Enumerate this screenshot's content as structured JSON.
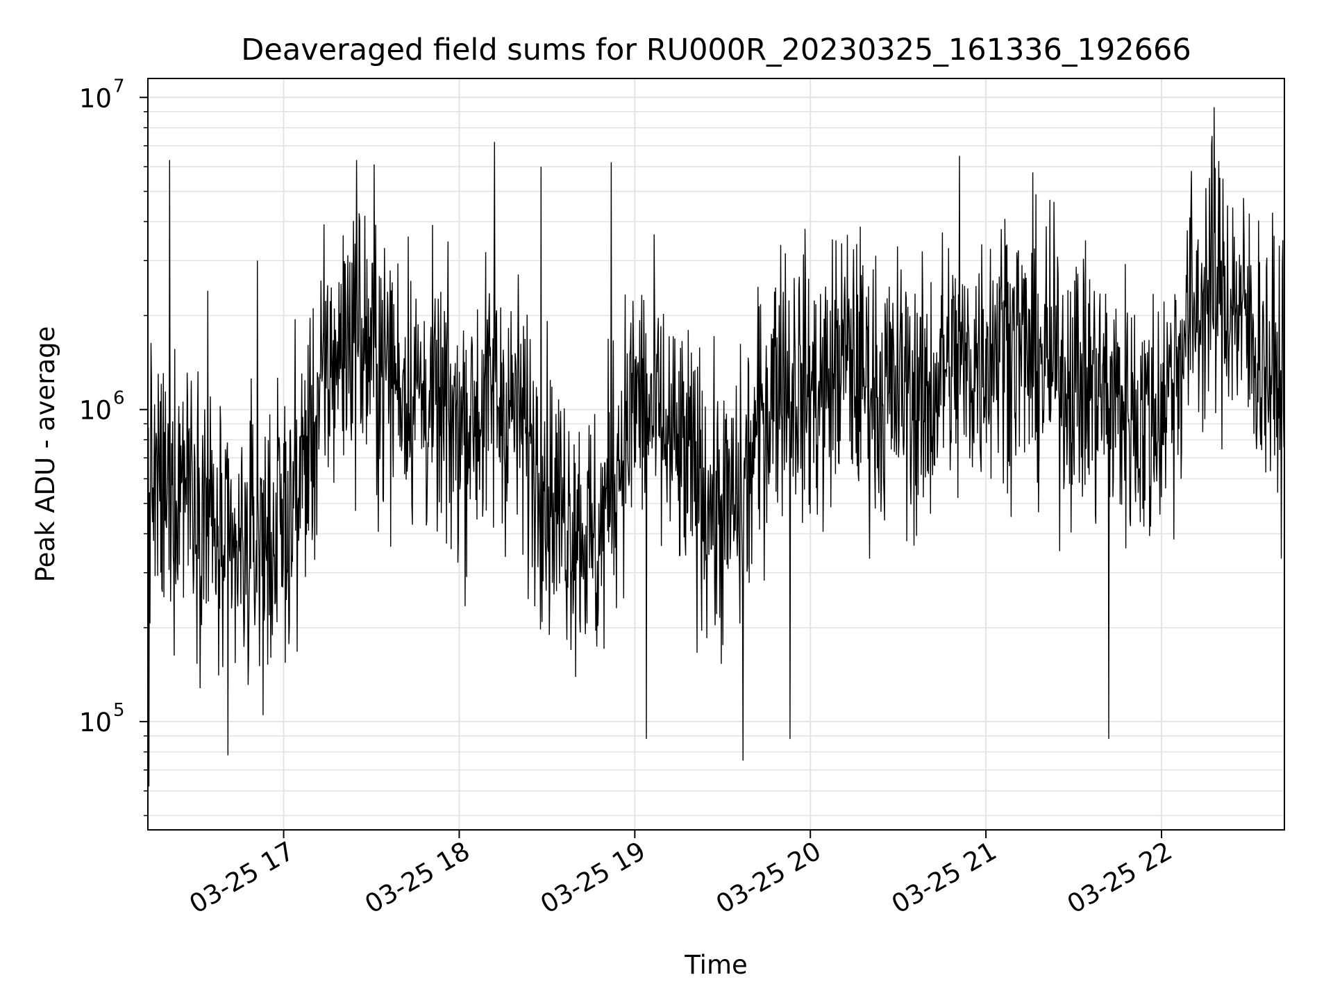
{
  "chart_data": {
    "type": "line",
    "title": "Deaveraged field sums for RU000R_20230325_161336_192666",
    "xlabel": "Time",
    "ylabel": "Peak ADU - average",
    "xscale": "time",
    "yscale": "log",
    "xlim": [
      "2023-03-25 16:13:36",
      "2023-03-25 22:42:00"
    ],
    "ylim": [
      45000,
      11500000
    ],
    "grid": true,
    "legend": "none",
    "line_color": "#000000",
    "x_ticks": [
      {
        "value": "2023-03-25 17:00",
        "label": "03-25 17"
      },
      {
        "value": "2023-03-25 18:00",
        "label": "03-25 18"
      },
      {
        "value": "2023-03-25 19:00",
        "label": "03-25 19"
      },
      {
        "value": "2023-03-25 20:00",
        "label": "03-25 20"
      },
      {
        "value": "2023-03-25 21:00",
        "label": "03-25 21"
      },
      {
        "value": "2023-03-25 22:00",
        "label": "03-25 22"
      }
    ],
    "y_ticks": [
      {
        "value": 100000,
        "base": "10",
        "exp": "5"
      },
      {
        "value": 1000000,
        "base": "10",
        "exp": "6"
      },
      {
        "value": 10000000,
        "base": "10",
        "exp": "7"
      }
    ],
    "series": [
      {
        "x": [
          "16:13",
          "16:20",
          "16:27",
          "16:34",
          "16:41",
          "16:48",
          "16:55",
          "17:02",
          "17:09",
          "17:16",
          "17:23",
          "17:30",
          "17:37",
          "17:44",
          "17:51",
          "17:58",
          "18:05",
          "18:12",
          "18:19",
          "18:26",
          "18:33",
          "18:40",
          "18:47",
          "18:54",
          "19:01",
          "19:08",
          "19:15",
          "19:22",
          "19:29",
          "19:36",
          "19:43",
          "19:50",
          "19:57",
          "20:04",
          "20:11",
          "20:18",
          "20:25",
          "20:32",
          "20:39",
          "20:46",
          "20:53",
          "21:00",
          "21:07",
          "21:14",
          "21:21",
          "21:28",
          "21:35",
          "21:42",
          "21:49",
          "21:56",
          "22:03",
          "22:10",
          "22:17",
          "22:24",
          "22:31",
          "22:38",
          "22:42"
        ],
        "y": [
          600000,
          500000,
          700000,
          450000,
          300000,
          350000,
          380000,
          450000,
          800000,
          1400000,
          1800000,
          1500000,
          1300000,
          1200000,
          1000000,
          900000,
          950000,
          1100000,
          1000000,
          700000,
          500000,
          450000,
          350000,
          700000,
          1100000,
          900000,
          700000,
          600000,
          450000,
          500000,
          900000,
          1400000,
          1200000,
          1100000,
          1500000,
          1300000,
          1100000,
          1200000,
          1000000,
          1400000,
          1300000,
          1600000,
          1800000,
          1500000,
          1400000,
          1300000,
          1200000,
          1100000,
          1000000,
          900000,
          1200000,
          2000000,
          2500000,
          2300000,
          1700000,
          1300000,
          1200000
        ],
        "spikes": [
          {
            "x": "16:13",
            "y": 53000
          },
          {
            "x": "16:14",
            "y": 62000
          },
          {
            "x": "16:21",
            "y": 6300000
          },
          {
            "x": "16:34",
            "y": 2400000
          },
          {
            "x": "16:41",
            "y": 78000
          },
          {
            "x": "16:51",
            "y": 3000000
          },
          {
            "x": "17:25",
            "y": 6300000
          },
          {
            "x": "17:31",
            "y": 6100000
          },
          {
            "x": "18:12",
            "y": 7200000
          },
          {
            "x": "18:28",
            "y": 6000000
          },
          {
            "x": "18:52",
            "y": 6200000
          },
          {
            "x": "19:04",
            "y": 88000
          },
          {
            "x": "19:37",
            "y": 75000
          },
          {
            "x": "19:53",
            "y": 88000
          },
          {
            "x": "20:51",
            "y": 6500000
          },
          {
            "x": "21:42",
            "y": 88000
          },
          {
            "x": "22:18",
            "y": 9300000
          }
        ]
      }
    ]
  }
}
